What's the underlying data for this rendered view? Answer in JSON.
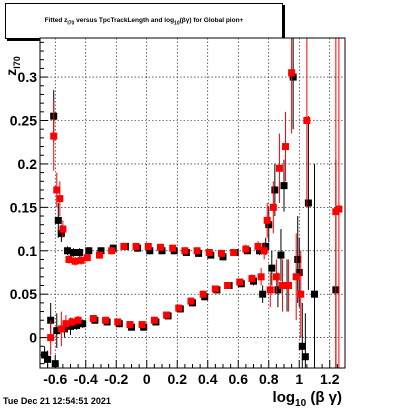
{
  "title": {
    "part1": "Fitted z",
    "sub1": "I70",
    "part2": " versus TpcTrackLength and log",
    "sub2": "10",
    "part3": "(βγ) for Global pion+"
  },
  "timestamp": "Tue Dec 21 12:54:51 2021",
  "chart_data": {
    "type": "scatter",
    "xlabel": "log10(βγ)",
    "ylabel": "zI70",
    "xlim": [
      -0.7,
      1.3
    ],
    "ylim": [
      -0.035,
      0.345
    ],
    "x_ticks": [
      "-0.6",
      "-0.4",
      "-0.2",
      "0",
      "0.2",
      "0.4",
      "0.6",
      "0.8",
      "1",
      "1.2"
    ],
    "x_tick_values": [
      -0.6,
      -0.4,
      -0.2,
      0,
      0.2,
      0.4,
      0.6,
      0.8,
      1.0,
      1.2
    ],
    "y_ticks": [
      "0",
      "0.05",
      "0.1",
      "0.15",
      "0.2",
      "0.25",
      "0.3"
    ],
    "y_tick_values": [
      0,
      0.05,
      0.1,
      0.15,
      0.2,
      0.25,
      0.3
    ],
    "grid": true,
    "series": [
      {
        "color": "#000000",
        "points": [
          {
            "x": -0.67,
            "y": -0.02,
            "e": 0.01
          },
          {
            "x": -0.65,
            "y": -0.025,
            "e": 0.01
          },
          {
            "x": -0.63,
            "y": 0.02,
            "e": 0.02
          },
          {
            "x": -0.61,
            "y": 0.255,
            "e": 0.03
          },
          {
            "x": -0.6,
            "y": -0.03,
            "e": 0.01
          },
          {
            "x": -0.59,
            "y": 0.008,
            "e": 0.02
          },
          {
            "x": -0.58,
            "y": 0.135,
            "e": 0.02
          },
          {
            "x": -0.56,
            "y": 0.12,
            "e": 0.01
          },
          {
            "x": -0.54,
            "y": 0.01,
            "e": 0.01
          },
          {
            "x": -0.52,
            "y": 0.1,
            "e": 0.005
          },
          {
            "x": -0.5,
            "y": 0.013,
            "e": 0.01
          },
          {
            "x": -0.48,
            "y": 0.098,
            "e": 0.005
          },
          {
            "x": -0.46,
            "y": 0.014,
            "e": 0.005
          },
          {
            "x": -0.44,
            "y": 0.098,
            "e": 0.005
          },
          {
            "x": -0.42,
            "y": 0.016,
            "e": 0.005
          },
          {
            "x": -0.38,
            "y": 0.1,
            "e": 0.004
          },
          {
            "x": -0.34,
            "y": 0.02,
            "e": 0.004
          },
          {
            "x": -0.3,
            "y": 0.1,
            "e": 0.004
          },
          {
            "x": -0.26,
            "y": 0.018,
            "e": 0.004
          },
          {
            "x": -0.22,
            "y": 0.103,
            "e": 0.004
          },
          {
            "x": -0.18,
            "y": 0.016,
            "e": 0.004
          },
          {
            "x": -0.14,
            "y": 0.105,
            "e": 0.004
          },
          {
            "x": -0.1,
            "y": 0.012,
            "e": 0.004
          },
          {
            "x": -0.06,
            "y": 0.103,
            "e": 0.004
          },
          {
            "x": -0.02,
            "y": 0.012,
            "e": 0.004
          },
          {
            "x": 0.02,
            "y": 0.1,
            "e": 0.004
          },
          {
            "x": 0.06,
            "y": 0.018,
            "e": 0.004
          },
          {
            "x": 0.1,
            "y": 0.1,
            "e": 0.004
          },
          {
            "x": 0.14,
            "y": 0.025,
            "e": 0.004
          },
          {
            "x": 0.18,
            "y": 0.1,
            "e": 0.004
          },
          {
            "x": 0.22,
            "y": 0.033,
            "e": 0.004
          },
          {
            "x": 0.26,
            "y": 0.098,
            "e": 0.004
          },
          {
            "x": 0.3,
            "y": 0.04,
            "e": 0.004
          },
          {
            "x": 0.34,
            "y": 0.097,
            "e": 0.004
          },
          {
            "x": 0.38,
            "y": 0.047,
            "e": 0.004
          },
          {
            "x": 0.42,
            "y": 0.095,
            "e": 0.004
          },
          {
            "x": 0.46,
            "y": 0.055,
            "e": 0.004
          },
          {
            "x": 0.5,
            "y": 0.093,
            "e": 0.004
          },
          {
            "x": 0.54,
            "y": 0.06,
            "e": 0.004
          },
          {
            "x": 0.58,
            "y": 0.098,
            "e": 0.004
          },
          {
            "x": 0.62,
            "y": 0.062,
            "e": 0.004
          },
          {
            "x": 0.66,
            "y": 0.1,
            "e": 0.004
          },
          {
            "x": 0.7,
            "y": 0.065,
            "e": 0.005
          },
          {
            "x": 0.74,
            "y": 0.1,
            "e": 0.005
          },
          {
            "x": 0.76,
            "y": 0.05,
            "e": 0.01
          },
          {
            "x": 0.78,
            "y": 0.105,
            "e": 0.01
          },
          {
            "x": 0.8,
            "y": 0.13,
            "e": 0.02
          },
          {
            "x": 0.82,
            "y": 0.08,
            "e": 0.02
          },
          {
            "x": 0.84,
            "y": 0.17,
            "e": 0.03
          },
          {
            "x": 0.86,
            "y": 0.055,
            "e": 0.02
          },
          {
            "x": 0.88,
            "y": 0.095,
            "e": 0.03
          },
          {
            "x": 0.9,
            "y": 0.175,
            "e": 0.03
          },
          {
            "x": 0.92,
            "y": 0.06,
            "e": 0.03
          },
          {
            "x": 0.96,
            "y": 0.3,
            "e": 0.06
          },
          {
            "x": 0.99,
            "y": 0.09,
            "e": 0.05
          },
          {
            "x": 1.0,
            "y": 0.075,
            "e": 0.04
          },
          {
            "x": 1.02,
            "y": -0.01,
            "e": 0.05
          },
          {
            "x": 1.04,
            "y": -0.022,
            "e": 0.05
          },
          {
            "x": 1.06,
            "y": 0.155,
            "e": 0.1
          },
          {
            "x": 1.1,
            "y": 0.05,
            "e": 0.15
          },
          {
            "x": 1.24,
            "y": 0.055,
            "e": 0.15
          }
        ]
      },
      {
        "color": "#ff0000",
        "points": [
          {
            "x": -0.63,
            "y": 0.0,
            "e": 0.02
          },
          {
            "x": -0.61,
            "y": 0.232,
            "e": 0.04
          },
          {
            "x": -0.59,
            "y": 0.17,
            "e": 0.02
          },
          {
            "x": -0.57,
            "y": 0.16,
            "e": 0.02
          },
          {
            "x": -0.56,
            "y": 0.01,
            "e": 0.02
          },
          {
            "x": -0.55,
            "y": 0.125,
            "e": 0.01
          },
          {
            "x": -0.53,
            "y": 0.016,
            "e": 0.01
          },
          {
            "x": -0.51,
            "y": 0.09,
            "e": 0.005
          },
          {
            "x": -0.49,
            "y": 0.018,
            "e": 0.005
          },
          {
            "x": -0.47,
            "y": 0.088,
            "e": 0.005
          },
          {
            "x": -0.45,
            "y": 0.02,
            "e": 0.005
          },
          {
            "x": -0.43,
            "y": 0.089,
            "e": 0.005
          },
          {
            "x": -0.39,
            "y": 0.092,
            "e": 0.004
          },
          {
            "x": -0.35,
            "y": 0.022,
            "e": 0.004
          },
          {
            "x": -0.31,
            "y": 0.095,
            "e": 0.004
          },
          {
            "x": -0.27,
            "y": 0.02,
            "e": 0.004
          },
          {
            "x": -0.23,
            "y": 0.1,
            "e": 0.004
          },
          {
            "x": -0.19,
            "y": 0.018,
            "e": 0.004
          },
          {
            "x": -0.15,
            "y": 0.105,
            "e": 0.004
          },
          {
            "x": -0.11,
            "y": 0.015,
            "e": 0.004
          },
          {
            "x": -0.07,
            "y": 0.105,
            "e": 0.004
          },
          {
            "x": -0.03,
            "y": 0.015,
            "e": 0.004
          },
          {
            "x": 0.01,
            "y": 0.105,
            "e": 0.004
          },
          {
            "x": 0.05,
            "y": 0.02,
            "e": 0.004
          },
          {
            "x": 0.09,
            "y": 0.104,
            "e": 0.004
          },
          {
            "x": 0.13,
            "y": 0.026,
            "e": 0.004
          },
          {
            "x": 0.17,
            "y": 0.103,
            "e": 0.004
          },
          {
            "x": 0.21,
            "y": 0.034,
            "e": 0.004
          },
          {
            "x": 0.25,
            "y": 0.1,
            "e": 0.004
          },
          {
            "x": 0.29,
            "y": 0.042,
            "e": 0.004
          },
          {
            "x": 0.33,
            "y": 0.1,
            "e": 0.004
          },
          {
            "x": 0.37,
            "y": 0.05,
            "e": 0.004
          },
          {
            "x": 0.41,
            "y": 0.098,
            "e": 0.004
          },
          {
            "x": 0.45,
            "y": 0.056,
            "e": 0.004
          },
          {
            "x": 0.49,
            "y": 0.097,
            "e": 0.004
          },
          {
            "x": 0.53,
            "y": 0.06,
            "e": 0.004
          },
          {
            "x": 0.57,
            "y": 0.098,
            "e": 0.004
          },
          {
            "x": 0.61,
            "y": 0.064,
            "e": 0.004
          },
          {
            "x": 0.65,
            "y": 0.102,
            "e": 0.005
          },
          {
            "x": 0.69,
            "y": 0.068,
            "e": 0.005
          },
          {
            "x": 0.73,
            "y": 0.105,
            "e": 0.006
          },
          {
            "x": 0.75,
            "y": 0.07,
            "e": 0.01
          },
          {
            "x": 0.77,
            "y": 0.1,
            "e": 0.01
          },
          {
            "x": 0.79,
            "y": 0.135,
            "e": 0.02
          },
          {
            "x": 0.81,
            "y": 0.055,
            "e": 0.02
          },
          {
            "x": 0.83,
            "y": 0.15,
            "e": 0.03
          },
          {
            "x": 0.85,
            "y": 0.07,
            "e": 0.02
          },
          {
            "x": 0.87,
            "y": 0.195,
            "e": 0.04
          },
          {
            "x": 0.89,
            "y": 0.06,
            "e": 0.03
          },
          {
            "x": 0.91,
            "y": 0.22,
            "e": 0.04
          },
          {
            "x": 0.93,
            "y": 0.06,
            "e": 0.03
          },
          {
            "x": 0.95,
            "y": 0.305,
            "e": 0.07
          },
          {
            "x": 0.98,
            "y": 0.07,
            "e": 0.05
          },
          {
            "x": 1.01,
            "y": 0.05,
            "e": 0.05
          },
          {
            "x": 1.05,
            "y": 0.25,
            "e": 0.1
          },
          {
            "x": 1.24,
            "y": 0.145,
            "e": 0.2
          },
          {
            "x": 1.26,
            "y": 0.148,
            "e": 0.2
          }
        ]
      }
    ]
  }
}
